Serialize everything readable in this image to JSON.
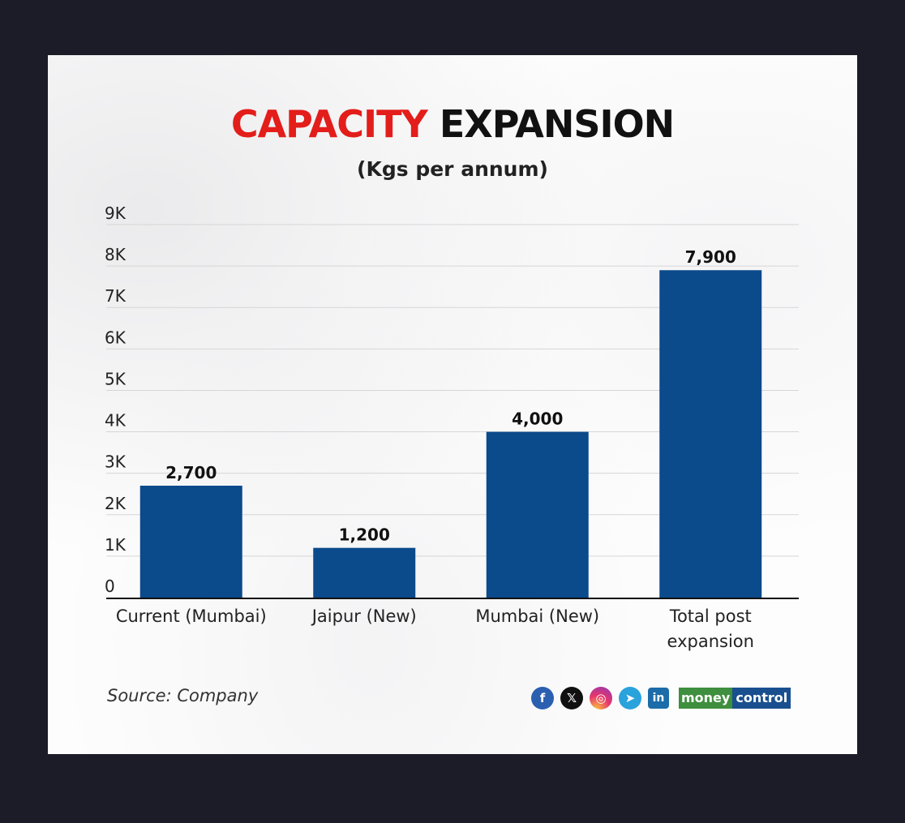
{
  "chart_data": {
    "type": "bar",
    "title_parts": [
      "CAPACITY",
      "EXPANSION"
    ],
    "subtitle": "(Kgs per annum)",
    "categories": [
      [
        "Current (Mumbai)"
      ],
      [
        "Jaipur (New)"
      ],
      [
        "Mumbai (New)"
      ],
      [
        "Total post",
        "expansion"
      ]
    ],
    "values": [
      2700,
      1200,
      4000,
      7900
    ],
    "data_labels": [
      "2,700",
      "1,200",
      "4,000",
      "7,900"
    ],
    "y_ticks": [
      0,
      1000,
      2000,
      3000,
      4000,
      5000,
      6000,
      7000,
      8000,
      9000
    ],
    "y_tick_labels": [
      "0",
      "1K",
      "2K",
      "3K",
      "4K",
      "5K",
      "6K",
      "7K",
      "8K",
      "9K"
    ],
    "ylim": [
      0,
      9000
    ],
    "grid": true,
    "bar_color": "#0b4a8b",
    "title_accent_color": "#e31d1a"
  },
  "footer": {
    "source": "Source: Company",
    "social_icons": [
      "facebook-icon",
      "x-icon",
      "instagram-icon",
      "telegram-icon",
      "linkedin-icon"
    ],
    "brand_left": "money",
    "brand_right": "control"
  }
}
